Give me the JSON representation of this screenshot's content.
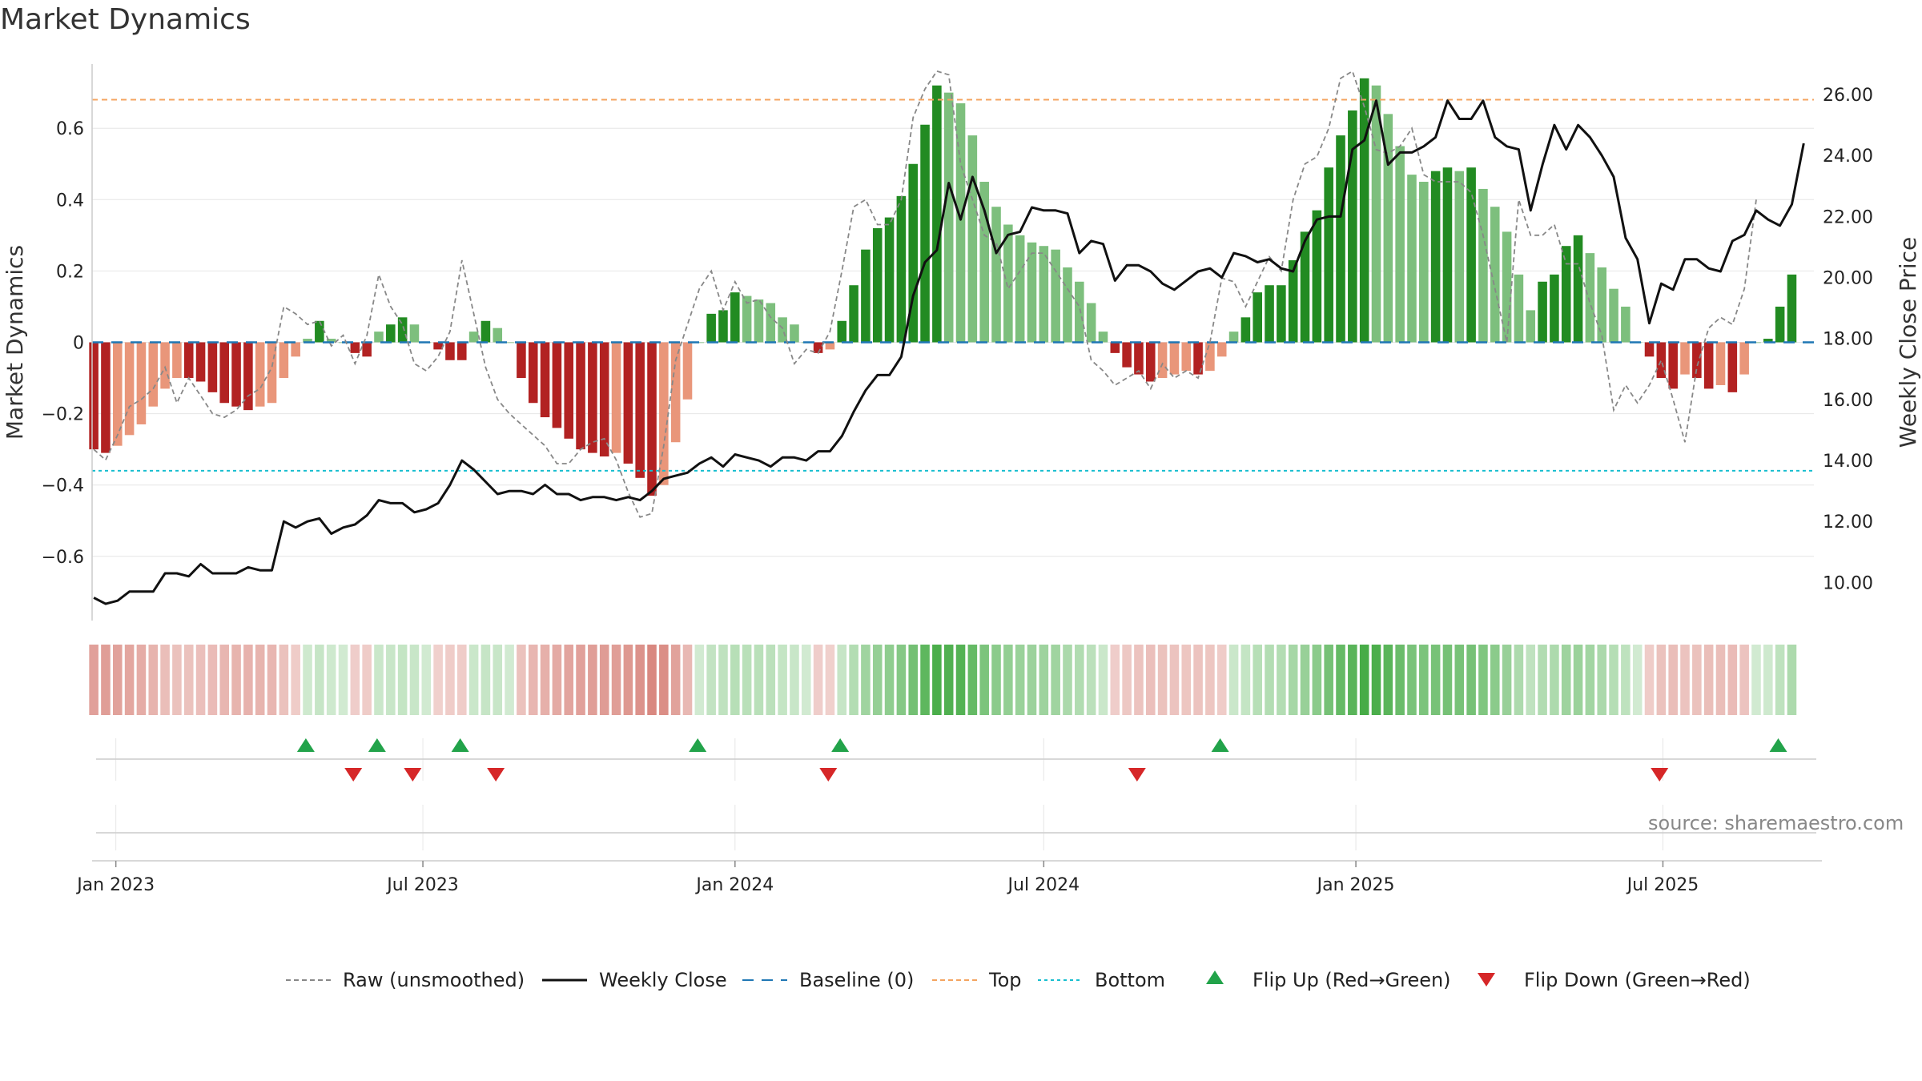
{
  "title": "Market Dynamics",
  "source": "source: sharemaestro.com",
  "chart_data": {
    "type": "bar",
    "title": "Market Dynamics",
    "ylabel_left": "Market Dynamics",
    "ylabel_right": "Weekly Close Price",
    "ylim_left": [
      -0.78,
      0.78
    ],
    "ylim_right": [
      8.75,
      27.0
    ],
    "yticks_left": [
      -0.6,
      -0.4,
      -0.2,
      0,
      0.2,
      0.4,
      0.6
    ],
    "yticks_left_labels": [
      "−0.6",
      "−0.4",
      "−0.2",
      "0",
      "0.2",
      "0.4",
      "0.6"
    ],
    "yticks_right": [
      10,
      12,
      14,
      16,
      18,
      20,
      22,
      24,
      26
    ],
    "yticks_right_labels": [
      "10.00",
      "12.00",
      "14.00",
      "16.00",
      "18.00",
      "20.00",
      "22.00",
      "24.00",
      "26.00"
    ],
    "x_range": [
      "2022-12-18",
      "2025-09-28"
    ],
    "x_start": "2022-12-19",
    "x_step_days": 7,
    "xticks": [
      "2023-01-01",
      "2023-07-01",
      "2024-01-01",
      "2024-07-01",
      "2025-01-01",
      "2025-07-01"
    ],
    "xtick_labels": [
      "Jan 2023",
      "Jul 2023",
      "Jan 2024",
      "Jul 2024",
      "Jan 2025",
      "Jul 2025"
    ],
    "top_level": 0.68,
    "bottom_level": -0.36,
    "baseline": 0,
    "series": [
      {
        "name": "Market Dynamics",
        "type": "bar",
        "values": [
          -0.3,
          -0.31,
          -0.29,
          -0.26,
          -0.23,
          -0.18,
          -0.13,
          -0.1,
          -0.1,
          -0.11,
          -0.14,
          -0.17,
          -0.18,
          -0.19,
          -0.18,
          -0.17,
          -0.1,
          -0.04,
          0.01,
          0.06,
          0.01,
          0.0,
          -0.03,
          -0.04,
          0.03,
          0.05,
          0.07,
          0.05,
          0.0,
          -0.02,
          -0.05,
          -0.05,
          0.03,
          0.06,
          0.04,
          0.0,
          -0.1,
          -0.17,
          -0.21,
          -0.24,
          -0.27,
          -0.3,
          -0.31,
          -0.32,
          -0.31,
          -0.34,
          -0.38,
          -0.43,
          -0.4,
          -0.28,
          -0.16,
          0.0,
          0.08,
          0.09,
          0.14,
          0.13,
          0.12,
          0.11,
          0.07,
          0.05,
          0.0,
          -0.03,
          -0.02,
          0.06,
          0.16,
          0.26,
          0.32,
          0.35,
          0.41,
          0.5,
          0.61,
          0.72,
          0.7,
          0.67,
          0.58,
          0.45,
          0.38,
          0.33,
          0.3,
          0.28,
          0.27,
          0.26,
          0.21,
          0.17,
          0.11,
          0.03,
          -0.03,
          -0.07,
          -0.09,
          -0.11,
          -0.1,
          -0.09,
          -0.08,
          -0.09,
          -0.08,
          -0.04,
          0.03,
          0.07,
          0.14,
          0.16,
          0.16,
          0.23,
          0.31,
          0.37,
          0.49,
          0.58,
          0.65,
          0.74,
          0.72,
          0.64,
          0.55,
          0.47,
          0.45,
          0.48,
          0.49,
          0.48,
          0.49,
          0.43,
          0.38,
          0.31,
          0.19,
          0.09,
          0.17,
          0.19,
          0.27,
          0.3,
          0.25,
          0.21,
          0.15,
          0.1,
          0.0,
          -0.04,
          -0.1,
          -0.13,
          -0.09,
          -0.1,
          -0.13,
          -0.12,
          -0.14,
          -0.09,
          0.0,
          0.01,
          0.1,
          0.19
        ]
      },
      {
        "name": "Raw (unsmoothed)",
        "type": "line",
        "values": [
          -0.3,
          -0.33,
          -0.26,
          -0.18,
          -0.16,
          -0.13,
          -0.07,
          -0.17,
          -0.1,
          -0.15,
          -0.2,
          -0.21,
          -0.19,
          -0.15,
          -0.13,
          -0.07,
          0.1,
          0.08,
          0.05,
          0.06,
          -0.01,
          0.02,
          -0.06,
          0.02,
          0.19,
          0.1,
          0.05,
          -0.06,
          -0.08,
          -0.04,
          0.03,
          0.23,
          0.08,
          -0.07,
          -0.16,
          -0.2,
          -0.23,
          -0.26,
          -0.29,
          -0.34,
          -0.34,
          -0.3,
          -0.28,
          -0.27,
          -0.33,
          -0.42,
          -0.49,
          -0.48,
          -0.29,
          -0.05,
          0.05,
          0.15,
          0.2,
          0.09,
          0.17,
          0.11,
          0.12,
          0.07,
          0.04,
          -0.06,
          -0.02,
          -0.03,
          0.03,
          0.2,
          0.38,
          0.4,
          0.33,
          0.33,
          0.4,
          0.63,
          0.71,
          0.76,
          0.75,
          0.5,
          0.4,
          0.3,
          0.28,
          0.15,
          0.2,
          0.25,
          0.25,
          0.2,
          0.15,
          0.1,
          -0.05,
          -0.08,
          -0.12,
          -0.1,
          -0.08,
          -0.13,
          -0.06,
          -0.1,
          -0.08,
          -0.1,
          0.0,
          0.18,
          0.17,
          0.1,
          0.17,
          0.24,
          0.2,
          0.4,
          0.5,
          0.52,
          0.6,
          0.74,
          0.76,
          0.66,
          0.54,
          0.53,
          0.55,
          0.6,
          0.47,
          0.45,
          0.45,
          0.45,
          0.42,
          0.3,
          0.15,
          0.0,
          0.4,
          0.3,
          0.3,
          0.33,
          0.22,
          0.22,
          0.11,
          0.02,
          -0.19,
          -0.12,
          -0.17,
          -0.12,
          -0.05,
          -0.16,
          -0.28,
          -0.07,
          0.04,
          0.07,
          0.05,
          0.15,
          0.4
        ]
      },
      {
        "name": "Weekly Close",
        "type": "line",
        "axis": "right",
        "values": [
          9.5,
          9.3,
          9.4,
          9.7,
          9.7,
          9.7,
          10.3,
          10.3,
          10.2,
          10.6,
          10.3,
          10.3,
          10.3,
          10.5,
          10.4,
          10.4,
          12.0,
          11.8,
          12.0,
          12.1,
          11.6,
          11.8,
          11.9,
          12.2,
          12.7,
          12.6,
          12.6,
          12.3,
          12.4,
          12.6,
          13.2,
          14.0,
          13.7,
          13.3,
          12.9,
          13.0,
          13.0,
          12.9,
          13.2,
          12.9,
          12.9,
          12.7,
          12.8,
          12.8,
          12.7,
          12.8,
          12.7,
          13.0,
          13.4,
          13.5,
          13.6,
          13.9,
          14.1,
          13.8,
          14.2,
          14.1,
          14.0,
          13.8,
          14.1,
          14.1,
          14.0,
          14.3,
          14.3,
          14.8,
          15.6,
          16.3,
          16.8,
          16.8,
          17.4,
          19.4,
          20.5,
          20.9,
          23.1,
          21.9,
          23.3,
          22.2,
          20.8,
          21.4,
          21.5,
          22.3,
          22.2,
          22.2,
          22.1,
          20.8,
          21.2,
          21.1,
          19.9,
          20.4,
          20.4,
          20.2,
          19.8,
          19.6,
          19.9,
          20.2,
          20.3,
          20.0,
          20.8,
          20.7,
          20.5,
          20.6,
          20.3,
          20.2,
          21.2,
          21.9,
          22.0,
          22.0,
          24.2,
          24.5,
          25.8,
          23.7,
          24.1,
          24.1,
          24.3,
          24.6,
          25.8,
          25.2,
          25.2,
          25.8,
          24.6,
          24.3,
          24.2,
          22.2,
          23.7,
          25.0,
          24.2,
          25.0,
          24.6,
          24.0,
          23.3,
          21.3,
          20.6,
          18.5,
          19.8,
          19.6,
          20.6,
          20.6,
          20.3,
          20.2,
          21.2,
          21.4,
          22.2,
          21.9,
          21.7,
          22.4,
          24.4
        ]
      }
    ],
    "regime_band": {
      "name": "Regime shading",
      "shown_as": "background strip shaded by Market Dynamics sign and magnitude",
      "colors": {
        "positive": "#2ca02c",
        "negative": "#c0392b"
      }
    },
    "flips_up": [
      "2023-04-23",
      "2023-06-04",
      "2023-07-23",
      "2023-12-10",
      "2024-03-03",
      "2024-10-13",
      "2025-09-07"
    ],
    "flips_down": [
      "2023-05-21",
      "2023-06-25",
      "2023-08-13",
      "2024-02-25",
      "2024-08-25",
      "2025-06-29"
    ],
    "legend": {
      "placement": "bottom-center",
      "entries": [
        {
          "label": "Raw (unsmoothed)",
          "style": "dashed",
          "color": "#888888"
        },
        {
          "label": "Weekly Close",
          "style": "solid",
          "color": "#111111"
        },
        {
          "label": "Baseline (0)",
          "style": "dashed",
          "color": "#1f77b4"
        },
        {
          "label": "Top",
          "style": "dashed",
          "color": "#f4a460"
        },
        {
          "label": "Bottom",
          "style": "dotted",
          "color": "#17becf"
        },
        {
          "label": "Flip Up (Red→Green)",
          "style": "triangle-up",
          "color": "#22a34a"
        },
        {
          "label": "Flip Down (Green→Red)",
          "style": "triangle-down",
          "color": "#d62728"
        }
      ]
    },
    "colors": {
      "pos_strong": "#228b22",
      "pos_weak": "#7dbf7d",
      "neg_strong": "#b22222",
      "neg_weak": "#e9967a",
      "raw_line": "#888888",
      "close_line": "#111111",
      "baseline": "#1f77b4",
      "top": "#f4a460",
      "bottom": "#17becf",
      "flip_up": "#22a34a",
      "flip_down": "#d62728",
      "grid": "#e6e6e6",
      "axis": "#cccccc"
    }
  }
}
